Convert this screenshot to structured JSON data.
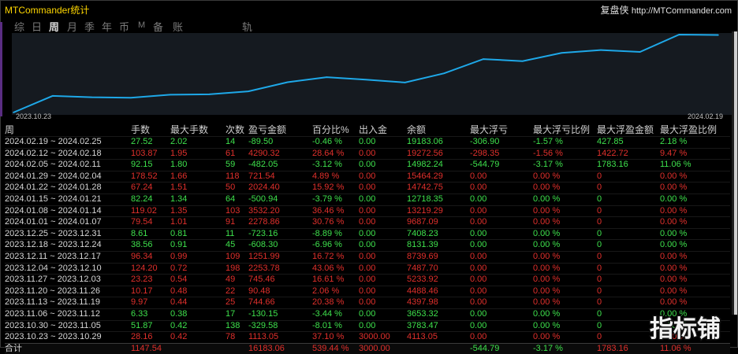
{
  "app": {
    "title": "MTCommander统计",
    "brand": "复盘侠",
    "url": "http://MTCommander.com"
  },
  "tabs": [
    {
      "label": "综",
      "active": false
    },
    {
      "label": "日",
      "active": false
    },
    {
      "label": "周",
      "active": true
    },
    {
      "label": "月",
      "active": false
    },
    {
      "label": "季",
      "active": false
    },
    {
      "label": "年",
      "active": false
    },
    {
      "label": "币",
      "active": false
    },
    {
      "label": "M",
      "active": false
    },
    {
      "label": "备",
      "active": false
    },
    {
      "label": "账户",
      "active": false
    },
    {
      "label": "轨迹",
      "active": false
    }
  ],
  "chart_data": {
    "type": "line",
    "x_start_label": "2023.10.23",
    "x_end_label": "2024.02.19",
    "series": [
      {
        "values": [
          0,
          4113.05,
          3783.47,
          3653.32,
          4397.98,
          4488.46,
          5233.92,
          7487.7,
          8739.69,
          8131.39,
          7408.23,
          9687.09,
          13219.29,
          12718.35,
          14742.75,
          15464.29,
          14982.24,
          19272.56,
          19183.06
        ],
        "color": "#1ea8e8"
      }
    ]
  },
  "table": {
    "headers": [
      "周",
      "手数",
      "最大手数",
      "次数",
      "盈亏金额",
      "百分比%",
      "出入金",
      "余额",
      "最大浮亏",
      "最大浮亏比例",
      "最大浮盈金额",
      "最大浮盈比例"
    ],
    "rows": [
      {
        "color": "g",
        "cells": [
          "2024.02.19 ~ 2024.02.25",
          "27.52",
          "2.02",
          "14",
          "-89.50",
          "-0.46 %",
          "0.00",
          "19183.06",
          "-306.90",
          "-1.57 %",
          "427.85",
          "2.18 %"
        ]
      },
      {
        "color": "r",
        "cells": [
          "2024.02.12 ~ 2024.02.18",
          "103.87",
          "1.95",
          "61",
          "4290.32",
          "28.64 %",
          "0.00",
          "19272.56",
          "-298.35",
          "-1.56 %",
          "1422.72",
          "9.47 %"
        ]
      },
      {
        "color": "g",
        "cells": [
          "2024.02.05 ~ 2024.02.11",
          "92.15",
          "1.80",
          "59",
          "-482.05",
          "-3.12 %",
          "0.00",
          "14982.24",
          "-544.79",
          "-3.17 %",
          "1783.16",
          "11.06 %"
        ]
      },
      {
        "color": "r",
        "cells": [
          "2024.01.29 ~ 2024.02.04",
          "178.52",
          "1.66",
          "118",
          "721.54",
          "4.89 %",
          "0.00",
          "15464.29",
          "0.00",
          "0.00 %",
          "0",
          "0.00 %"
        ]
      },
      {
        "color": "r",
        "cells": [
          "2024.01.22 ~ 2024.01.28",
          "67.24",
          "1.51",
          "50",
          "2024.40",
          "15.92 %",
          "0.00",
          "14742.75",
          "0.00",
          "0.00 %",
          "0",
          "0.00 %"
        ]
      },
      {
        "color": "g",
        "cells": [
          "2024.01.15 ~ 2024.01.21",
          "82.24",
          "1.34",
          "64",
          "-500.94",
          "-3.79 %",
          "0.00",
          "12718.35",
          "0.00",
          "0.00 %",
          "0",
          "0.00 %"
        ]
      },
      {
        "color": "r",
        "cells": [
          "2024.01.08 ~ 2024.01.14",
          "119.02",
          "1.35",
          "103",
          "3532.20",
          "36.46 %",
          "0.00",
          "13219.29",
          "0.00",
          "0.00 %",
          "0",
          "0.00 %"
        ]
      },
      {
        "color": "r",
        "cells": [
          "2024.01.01 ~ 2024.01.07",
          "79.54",
          "1.01",
          "91",
          "2278.86",
          "30.76 %",
          "0.00",
          "9687.09",
          "0.00",
          "0.00 %",
          "0",
          "0.00 %"
        ]
      },
      {
        "color": "g",
        "cells": [
          "2023.12.25 ~ 2023.12.31",
          "8.61",
          "0.81",
          "11",
          "-723.16",
          "-8.89 %",
          "0.00",
          "7408.23",
          "0.00",
          "0.00 %",
          "0",
          "0.00 %"
        ]
      },
      {
        "color": "g",
        "cells": [
          "2023.12.18 ~ 2023.12.24",
          "38.56",
          "0.91",
          "45",
          "-608.30",
          "-6.96 %",
          "0.00",
          "8131.39",
          "0.00",
          "0.00 %",
          "0",
          "0.00 %"
        ]
      },
      {
        "color": "r",
        "cells": [
          "2023.12.11 ~ 2023.12.17",
          "96.34",
          "0.99",
          "109",
          "1251.99",
          "16.72 %",
          "0.00",
          "8739.69",
          "0.00",
          "0.00 %",
          "0",
          "0.00 %"
        ]
      },
      {
        "color": "r",
        "cells": [
          "2023.12.04 ~ 2023.12.10",
          "124.20",
          "0.72",
          "198",
          "2253.78",
          "43.06 %",
          "0.00",
          "7487.70",
          "0.00",
          "0.00 %",
          "0",
          "0.00 %"
        ]
      },
      {
        "color": "r",
        "cells": [
          "2023.11.27 ~ 2023.12.03",
          "23.23",
          "0.54",
          "49",
          "745.46",
          "16.61 %",
          "0.00",
          "5233.92",
          "0.00",
          "0.00 %",
          "0",
          "0.00 %"
        ]
      },
      {
        "color": "r",
        "cells": [
          "2023.11.20 ~ 2023.11.26",
          "10.17",
          "0.48",
          "22",
          "90.48",
          "2.06 %",
          "0.00",
          "4488.46",
          "0.00",
          "0.00 %",
          "0",
          "0.00 %"
        ]
      },
      {
        "color": "r",
        "cells": [
          "2023.11.13 ~ 2023.11.19",
          "9.97",
          "0.44",
          "25",
          "744.66",
          "20.38 %",
          "0.00",
          "4397.98",
          "0.00",
          "0.00 %",
          "0",
          "0.00 %"
        ]
      },
      {
        "color": "g",
        "cells": [
          "2023.11.06 ~ 2023.11.12",
          "6.33",
          "0.38",
          "17",
          "-130.15",
          "-3.44 %",
          "0.00",
          "3653.32",
          "0.00",
          "0.00 %",
          "0",
          "0.00 %"
        ]
      },
      {
        "color": "g",
        "cells": [
          "2023.10.30 ~ 2023.11.05",
          "51.87",
          "0.42",
          "138",
          "-329.58",
          "-8.01 %",
          "0.00",
          "3783.47",
          "0.00",
          "0.00 %",
          "0",
          "0.00 %"
        ]
      },
      {
        "color": "r",
        "cells": [
          "2023.10.23 ~ 2023.10.29",
          "28.16",
          "0.42",
          "78",
          "1113.05",
          "37.10 %",
          "3000.00",
          "4113.05",
          "0.00",
          "0.00 %",
          "0",
          "0.00 %"
        ]
      }
    ],
    "total": {
      "cells": [
        "合计",
        "1147.54",
        "",
        "",
        "16183.06",
        "539.44 %",
        "3000.00",
        "",
        "-544.79",
        "-3.17 %",
        "1783.16",
        "11.06 %"
      ],
      "colors": [
        "w",
        "r",
        "w",
        "w",
        "r",
        "r",
        "r",
        "w",
        "g",
        "g",
        "r",
        "r"
      ]
    }
  },
  "watermark": {
    "text": "指标铺"
  },
  "colors": {
    "gain": "#e0302c",
    "loss": "#3ee04c",
    "line": "#1ea8e8",
    "title": "#ffd700"
  }
}
